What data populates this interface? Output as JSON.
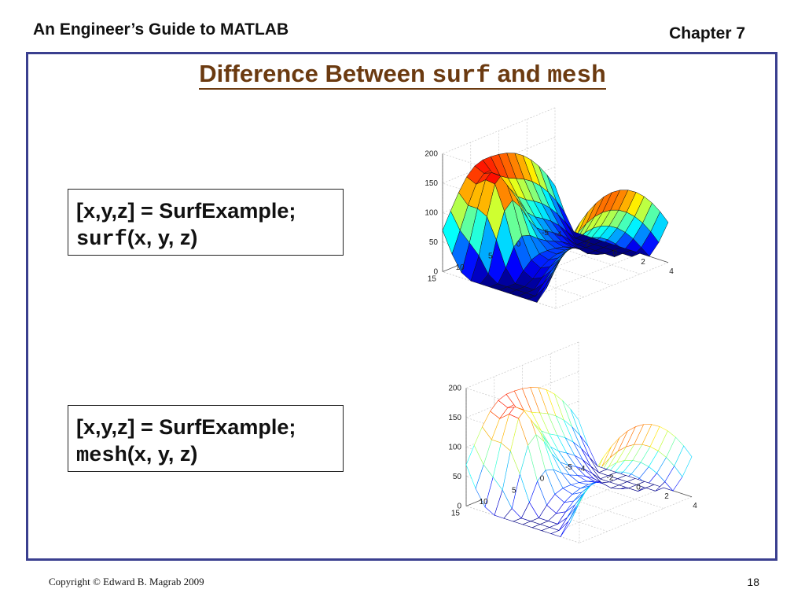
{
  "header": {
    "book_title": "An Engineer’s Guide to MATLAB",
    "chapter": "Chapter 7"
  },
  "slide": {
    "title_prefix": "Difference Between ",
    "title_code1": "surf",
    "title_mid": " and ",
    "title_code2": "mesh"
  },
  "examples": [
    {
      "line1": "[x,y,z] = SurfExample;",
      "func": "surf",
      "args": "(x, y, z)"
    },
    {
      "line1": "[x,y,z] = SurfExample;",
      "func": "mesh",
      "args": "(x, y, z)"
    }
  ],
  "plots": {
    "z_ticks": [
      "200",
      "150",
      "100",
      "50",
      "0"
    ],
    "y_ticks": [
      "15",
      "10",
      "5",
      "0",
      "-5"
    ],
    "x_ticks": [
      "-4",
      "-2",
      "0",
      "2",
      "4"
    ]
  },
  "footer": {
    "copyright": "Copyright © Edward B. Magrab 2009",
    "page_number": "18"
  }
}
